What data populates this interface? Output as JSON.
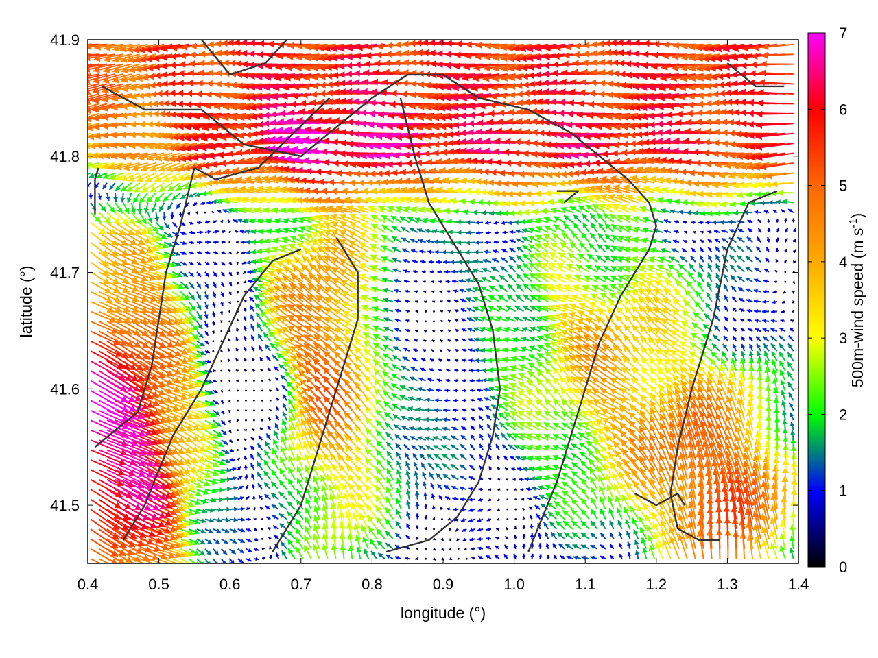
{
  "chart_data": {
    "type": "vector-field",
    "xlabel": "longitude (°)",
    "ylabel": "latitude (°)",
    "xlim": [
      0.4,
      1.4
    ],
    "ylim": [
      41.45,
      41.9
    ],
    "x_ticks": [
      "0.4",
      "0.5",
      "0.6",
      "0.7",
      "0.8",
      "0.9",
      "1.0",
      "1.1",
      "1.2",
      "1.3",
      "1.4"
    ],
    "y_ticks": [
      "41.5",
      "41.6",
      "41.7",
      "41.8",
      "41.9"
    ],
    "grid": false,
    "colorbar": {
      "label_main": "500m-wind speed (m s",
      "label_sup": "-1",
      "label_close": ")",
      "range": [
        0,
        7
      ],
      "ticks": [
        "0",
        "1",
        "2",
        "3",
        "4",
        "5",
        "6",
        "7"
      ],
      "colors": [
        "#000000",
        "#0000ff",
        "#00ff00",
        "#ffff00",
        "#ffaa00",
        "#ff6600",
        "#ff0000",
        "#ff00ff"
      ]
    },
    "wind_regimes": [
      {
        "region": "north (41.80–41.90)",
        "direction": "westward",
        "speed_range": [
          4.5,
          6.5
        ]
      },
      {
        "region": "west (0.40–0.55)",
        "direction": "southeastward",
        "speed_range": [
          6,
          7
        ]
      },
      {
        "region": "centre (0.80–0.97, 41.58–41.74)",
        "direction": "calm",
        "speed_range": [
          0,
          1.5
        ]
      },
      {
        "region": "west-centre (0.60–0.68, 41.56–41.62)",
        "direction": "calm",
        "speed_range": [
          0,
          1.5
        ]
      },
      {
        "region": "southeast (1.20–1.40)",
        "direction": "northward",
        "speed_range": [
          3,
          7
        ]
      }
    ],
    "contours": [
      [
        [
          0.41,
          41.75
        ],
        [
          0.41,
          41.78
        ],
        [
          0.415,
          41.79
        ]
      ],
      [
        [
          0.42,
          41.86
        ],
        [
          0.48,
          41.84
        ],
        [
          0.56,
          41.84
        ],
        [
          0.62,
          41.81
        ],
        [
          0.7,
          41.8
        ],
        [
          0.74,
          41.82
        ],
        [
          0.78,
          41.84
        ],
        [
          0.8,
          41.85
        ],
        [
          0.85,
          41.87
        ],
        [
          0.9,
          41.87
        ]
      ],
      [
        [
          0.55,
          41.79
        ],
        [
          0.53,
          41.74
        ],
        [
          0.51,
          41.7
        ],
        [
          0.5,
          41.66
        ],
        [
          0.49,
          41.62
        ],
        [
          0.47,
          41.58
        ],
        [
          0.43,
          41.56
        ],
        [
          0.41,
          41.55
        ]
      ],
      [
        [
          0.74,
          41.85
        ],
        [
          0.69,
          41.82
        ],
        [
          0.64,
          41.79
        ],
        [
          0.58,
          41.78
        ],
        [
          0.55,
          41.79
        ]
      ],
      [
        [
          0.9,
          41.87
        ],
        [
          0.95,
          41.85
        ],
        [
          1.02,
          41.84
        ],
        [
          1.08,
          41.82
        ],
        [
          1.12,
          41.8
        ],
        [
          1.16,
          41.78
        ],
        [
          1.19,
          41.76
        ],
        [
          1.2,
          41.74
        ],
        [
          1.19,
          41.72
        ],
        [
          1.17,
          41.7
        ],
        [
          1.15,
          41.68
        ],
        [
          1.12,
          41.64
        ],
        [
          1.1,
          41.6
        ],
        [
          1.08,
          41.56
        ],
        [
          1.06,
          41.52
        ],
        [
          1.04,
          41.49
        ],
        [
          1.02,
          41.46
        ]
      ],
      [
        [
          0.7,
          41.72
        ],
        [
          0.66,
          41.71
        ],
        [
          0.62,
          41.68
        ],
        [
          0.59,
          41.64
        ],
        [
          0.56,
          41.6
        ],
        [
          0.52,
          41.56
        ],
        [
          0.48,
          41.5
        ],
        [
          0.45,
          41.47
        ]
      ],
      [
        [
          0.75,
          41.73
        ],
        [
          0.78,
          41.7
        ],
        [
          0.78,
          41.66
        ],
        [
          0.76,
          41.62
        ],
        [
          0.74,
          41.58
        ],
        [
          0.72,
          41.54
        ],
        [
          0.7,
          41.5
        ],
        [
          0.66,
          41.46
        ]
      ],
      [
        [
          0.84,
          41.85
        ],
        [
          0.86,
          41.8
        ],
        [
          0.88,
          41.76
        ],
        [
          0.92,
          41.72
        ],
        [
          0.95,
          41.69
        ],
        [
          0.97,
          41.65
        ],
        [
          0.98,
          41.6
        ],
        [
          0.97,
          41.56
        ],
        [
          0.95,
          41.52
        ],
        [
          0.92,
          41.49
        ],
        [
          0.88,
          41.47
        ],
        [
          0.82,
          41.46
        ]
      ],
      [
        [
          1.37,
          41.77
        ],
        [
          1.33,
          41.76
        ],
        [
          1.3,
          41.72
        ],
        [
          1.28,
          41.66
        ],
        [
          1.25,
          41.6
        ],
        [
          1.23,
          41.55
        ],
        [
          1.22,
          41.51
        ],
        [
          1.23,
          41.48
        ],
        [
          1.26,
          41.47
        ],
        [
          1.29,
          41.47
        ]
      ],
      [
        [
          1.17,
          41.51
        ],
        [
          1.2,
          41.5
        ],
        [
          1.23,
          41.51
        ],
        [
          1.24,
          41.5
        ]
      ],
      [
        [
          1.06,
          41.77
        ],
        [
          1.09,
          41.77
        ],
        [
          1.07,
          41.76
        ]
      ],
      [
        [
          1.3,
          41.88
        ],
        [
          1.34,
          41.86
        ],
        [
          1.38,
          41.86
        ]
      ],
      [
        [
          0.56,
          41.9
        ],
        [
          0.6,
          41.87
        ],
        [
          0.65,
          41.88
        ],
        [
          0.68,
          41.9
        ]
      ]
    ]
  }
}
